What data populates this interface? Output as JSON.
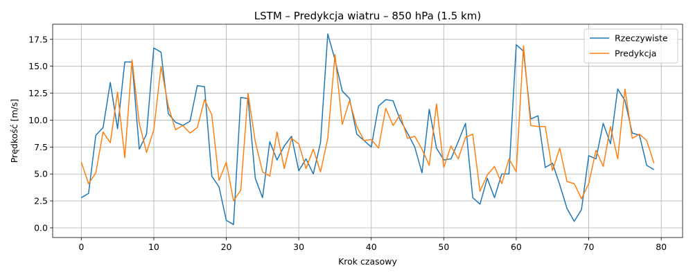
{
  "chart_data": {
    "type": "line",
    "title": "LSTM – Predykcja wiatru – 850 hPa (1.5 km)",
    "xlabel": "Krok czasowy",
    "ylabel": "Prędkość [m/s]",
    "xlim": [
      -3.95,
      82.95
    ],
    "ylim": [
      -0.9,
      18.9
    ],
    "xticks": [
      0,
      10,
      20,
      30,
      40,
      50,
      60,
      70,
      80
    ],
    "yticks": [
      0.0,
      2.5,
      5.0,
      7.5,
      10.0,
      12.5,
      15.0,
      17.5
    ],
    "xtick_labels": [
      "0",
      "10",
      "20",
      "30",
      "40",
      "50",
      "60",
      "70",
      "80"
    ],
    "ytick_labels": [
      "0.0",
      "2.5",
      "5.0",
      "7.5",
      "10.0",
      "12.5",
      "15.0",
      "17.5"
    ],
    "grid": true,
    "legend_position": "top-right",
    "series": [
      {
        "name": "Rzeczywiste",
        "color": "#1f77b4",
        "values": [
          2.8,
          3.2,
          8.6,
          9.3,
          13.5,
          9.2,
          15.4,
          15.4,
          7.3,
          8.7,
          16.7,
          16.3,
          10.6,
          9.8,
          9.5,
          9.9,
          13.2,
          13.1,
          4.8,
          3.8,
          0.7,
          0.3,
          12.1,
          12.0,
          4.6,
          2.8,
          8.0,
          6.3,
          7.6,
          8.5,
          5.3,
          6.4,
          5.0,
          7.9,
          18.0,
          15.6,
          12.7,
          12.0,
          8.7,
          8.1,
          7.5,
          11.3,
          11.9,
          11.8,
          10.0,
          8.8,
          7.5,
          5.1,
          11.0,
          7.4,
          6.3,
          6.4,
          8.0,
          9.7,
          2.8,
          2.2,
          4.6,
          2.8,
          5.0,
          5.0,
          17.0,
          16.4,
          10.1,
          10.4,
          5.6,
          6.0,
          4.0,
          1.8,
          0.6,
          1.7,
          6.7,
          6.4,
          9.7,
          7.8,
          12.9,
          11.8,
          8.8,
          8.6,
          5.8,
          5.4
        ]
      },
      {
        "name": "Predykcja",
        "color": "#ff7f0e",
        "values": [
          6.1,
          4.1,
          5.1,
          8.9,
          7.9,
          12.6,
          6.5,
          15.6,
          9.7,
          7.0,
          9.1,
          15.0,
          11.3,
          9.1,
          9.5,
          8.8,
          9.3,
          11.9,
          10.5,
          4.4,
          6.1,
          2.5,
          3.5,
          12.5,
          8.0,
          5.2,
          4.8,
          8.9,
          5.5,
          8.3,
          7.8,
          5.5,
          7.3,
          5.2,
          8.3,
          16.1,
          9.6,
          11.8,
          9.4,
          8.1,
          8.2,
          7.4,
          11.1,
          9.5,
          10.5,
          8.3,
          8.5,
          7.3,
          5.8,
          11.5,
          5.6,
          7.6,
          6.4,
          8.4,
          8.7,
          3.4,
          4.9,
          5.7,
          4.1,
          6.4,
          5.2,
          16.9,
          9.5,
          9.4,
          9.4,
          5.3,
          7.4,
          4.3,
          4.1,
          2.7,
          4.1,
          7.2,
          5.7,
          9.4,
          6.4,
          12.9,
          8.3,
          8.7,
          8.1,
          6.0
        ]
      }
    ]
  }
}
